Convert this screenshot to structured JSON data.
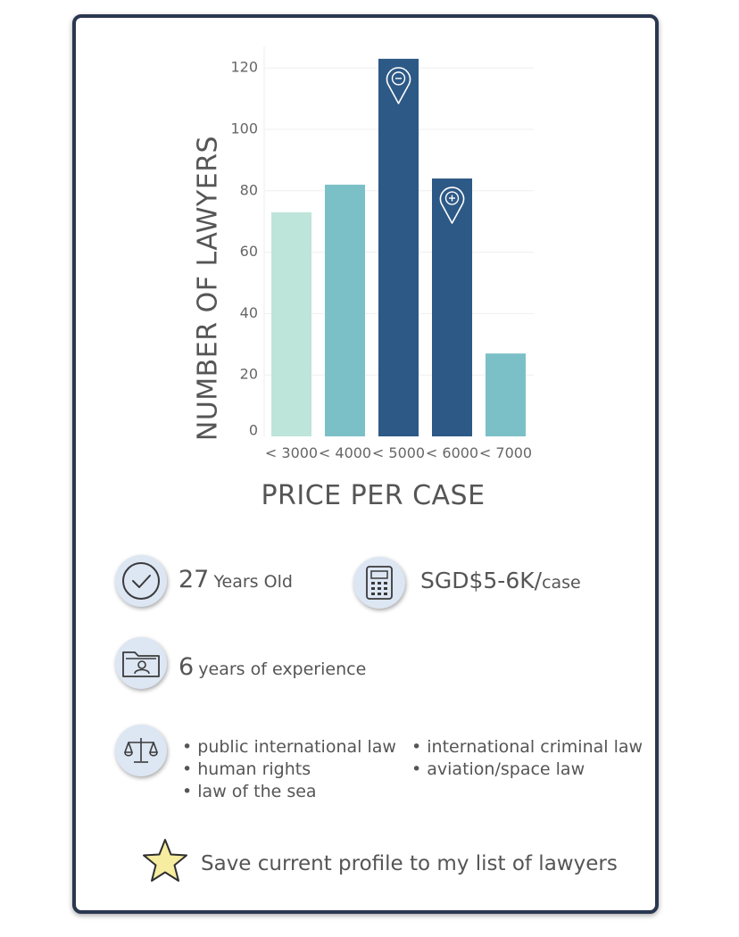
{
  "chart_data": {
    "type": "bar",
    "categories": [
      "< 3000",
      "< 4000",
      "< 5000",
      "< 6000",
      "< 7000"
    ],
    "values": [
      73,
      82,
      123,
      84,
      27
    ],
    "colors": [
      "#bde5da",
      "#7cc0c7",
      "#2d5986",
      "#2d5986",
      "#7cc0c7"
    ],
    "yticks": [
      0,
      20,
      40,
      60,
      80,
      100,
      120
    ],
    "ylim": [
      0,
      123
    ],
    "grid": true,
    "xlabel": "PRICE PER CASE",
    "ylabel": "NUMBER OF LAWYERS",
    "markers": [
      {
        "category": "< 5000",
        "icon": "pin-minus-icon"
      },
      {
        "category": "< 6000",
        "icon": "pin-plus-icon"
      }
    ]
  },
  "profile": {
    "age_value": "27",
    "age_unit": "Years Old",
    "price_value": "SGD$5-6K/",
    "price_unit": "case",
    "experience_value": "6",
    "experience_unit": "years of experience",
    "specialties": [
      "public international law",
      "human rights",
      "law of the sea",
      "international criminal law",
      "aviation/space law"
    ],
    "bullet": "•"
  },
  "save": {
    "label": "Save current profile to my list of lawyers",
    "star_color": "#f7eda0"
  },
  "icons": {
    "age": "check-circle-icon",
    "price": "calculator-icon",
    "experience": "folder-person-icon",
    "specialties": "scales-icon",
    "save": "star-icon"
  }
}
